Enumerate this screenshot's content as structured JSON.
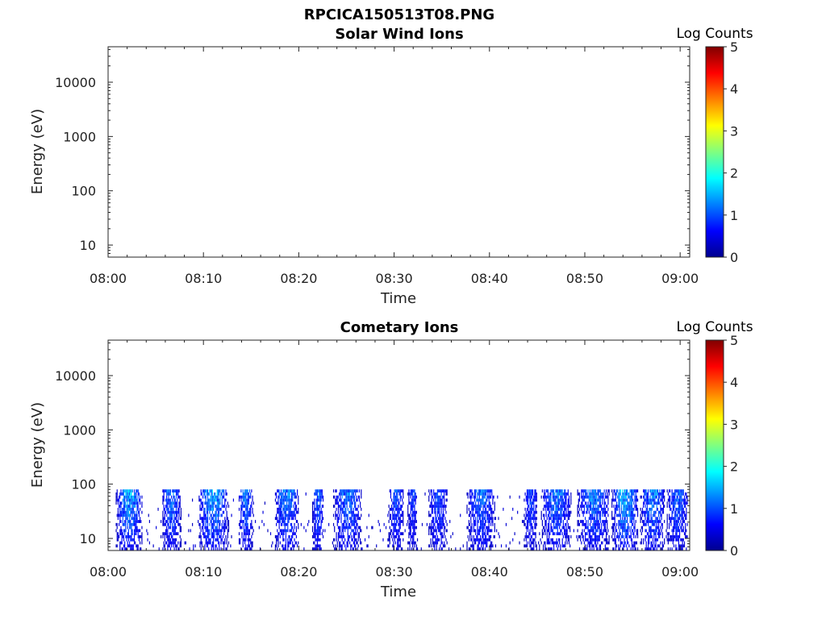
{
  "figure": {
    "filename": "RPCICA150513T08.PNG"
  },
  "chart_data": [
    {
      "type": "heatmap",
      "title": "Solar Wind Ions",
      "xlabel": "Time",
      "ylabel": "Energy (eV)",
      "x_ticks": [
        "08:00",
        "08:10",
        "08:20",
        "08:30",
        "08:40",
        "08:50",
        "09:00"
      ],
      "xlim_minutes": [
        0,
        61
      ],
      "y_scale": "log",
      "y_ticks": [
        10,
        100,
        1000,
        10000
      ],
      "y_tick_labels": [
        "10",
        "100",
        "1000",
        "10000"
      ],
      "ylim": [
        6,
        45000
      ],
      "colorbar": {
        "label": "Log Counts",
        "range": [
          0,
          5
        ],
        "ticks": [
          "0",
          "1",
          "2",
          "3",
          "4",
          "5"
        ],
        "colormap": "jet"
      },
      "bursts": []
    },
    {
      "type": "heatmap",
      "title": "Cometary Ions",
      "xlabel": "Time",
      "ylabel": "Energy (eV)",
      "x_ticks": [
        "08:00",
        "08:10",
        "08:20",
        "08:30",
        "08:40",
        "08:50",
        "09:00"
      ],
      "xlim_minutes": [
        0,
        61
      ],
      "y_scale": "log",
      "y_ticks": [
        10,
        100,
        1000,
        10000
      ],
      "y_tick_labels": [
        "10",
        "100",
        "1000",
        "10000"
      ],
      "ylim": [
        6,
        45000
      ],
      "colorbar": {
        "label": "Log Counts",
        "range": [
          0,
          5
        ],
        "ticks": [
          "0",
          "1",
          "2",
          "3",
          "4",
          "5"
        ],
        "colormap": "jet"
      },
      "signal_energy_range_eV": [
        6,
        80
      ],
      "data_time_range_minutes": [
        0.8,
        60.8
      ],
      "bursts": [
        {
          "start": 0.8,
          "end": 3.6,
          "peak": 1.7
        },
        {
          "start": 5.6,
          "end": 7.6,
          "peak": 1.3
        },
        {
          "start": 9.4,
          "end": 12.6,
          "peak": 1.7
        },
        {
          "start": 13.6,
          "end": 15.2,
          "peak": 1.3
        },
        {
          "start": 17.4,
          "end": 20.0,
          "peak": 1.4
        },
        {
          "start": 21.4,
          "end": 22.6,
          "peak": 1.2
        },
        {
          "start": 23.6,
          "end": 26.6,
          "peak": 1.3
        },
        {
          "start": 29.4,
          "end": 31.0,
          "peak": 1.0
        },
        {
          "start": 31.4,
          "end": 32.4,
          "peak": 0.9
        },
        {
          "start": 33.6,
          "end": 35.6,
          "peak": 1.0
        },
        {
          "start": 37.6,
          "end": 40.6,
          "peak": 1.2
        },
        {
          "start": 43.6,
          "end": 45.0,
          "peak": 1.0
        },
        {
          "start": 45.4,
          "end": 48.6,
          "peak": 1.3
        },
        {
          "start": 49.2,
          "end": 52.6,
          "peak": 1.4
        },
        {
          "start": 52.8,
          "end": 55.6,
          "peak": 1.8
        },
        {
          "start": 55.8,
          "end": 58.4,
          "peak": 1.5
        },
        {
          "start": 58.6,
          "end": 60.8,
          "peak": 1.2
        }
      ]
    }
  ]
}
